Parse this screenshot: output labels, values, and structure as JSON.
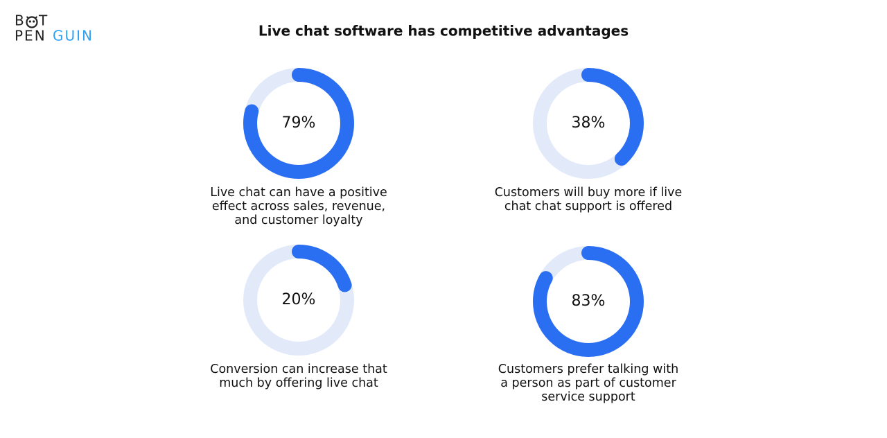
{
  "header": {
    "title": "Live chat software has competitive advantages",
    "logo": {
      "line1": [
        "B",
        "T"
      ],
      "line2": [
        "PEN",
        "GUIN"
      ]
    }
  },
  "chart_data": [
    {
      "type": "donut",
      "values": [
        79
      ],
      "value_labels": [
        "79%"
      ],
      "ylim": [
        0,
        100
      ],
      "color": "#2a6ef2",
      "track_color": "#e2eafa",
      "caption": [
        "Live chat can have a positive",
        "effect across sales, revenue,",
        "and customer loyalty"
      ]
    },
    {
      "type": "donut",
      "values": [
        38
      ],
      "value_labels": [
        "38%"
      ],
      "ylim": [
        0,
        100
      ],
      "color": "#2a6ef2",
      "track_color": "#e2eafa",
      "caption": [
        "Customers will buy more if live",
        "chat chat support is offered"
      ]
    },
    {
      "type": "donut",
      "values": [
        20
      ],
      "value_labels": [
        "20%"
      ],
      "ylim": [
        0,
        100
      ],
      "color": "#2a6ef2",
      "track_color": "#e2eafa",
      "caption": [
        "Conversion can increase that",
        "much by offering live chat"
      ]
    },
    {
      "type": "donut",
      "values": [
        83
      ],
      "value_labels": [
        "83%"
      ],
      "ylim": [
        0,
        100
      ],
      "color": "#2a6ef2",
      "track_color": "#e2eafa",
      "caption": [
        "Customers prefer talking with",
        "a person as part of customer",
        "service support"
      ]
    }
  ]
}
